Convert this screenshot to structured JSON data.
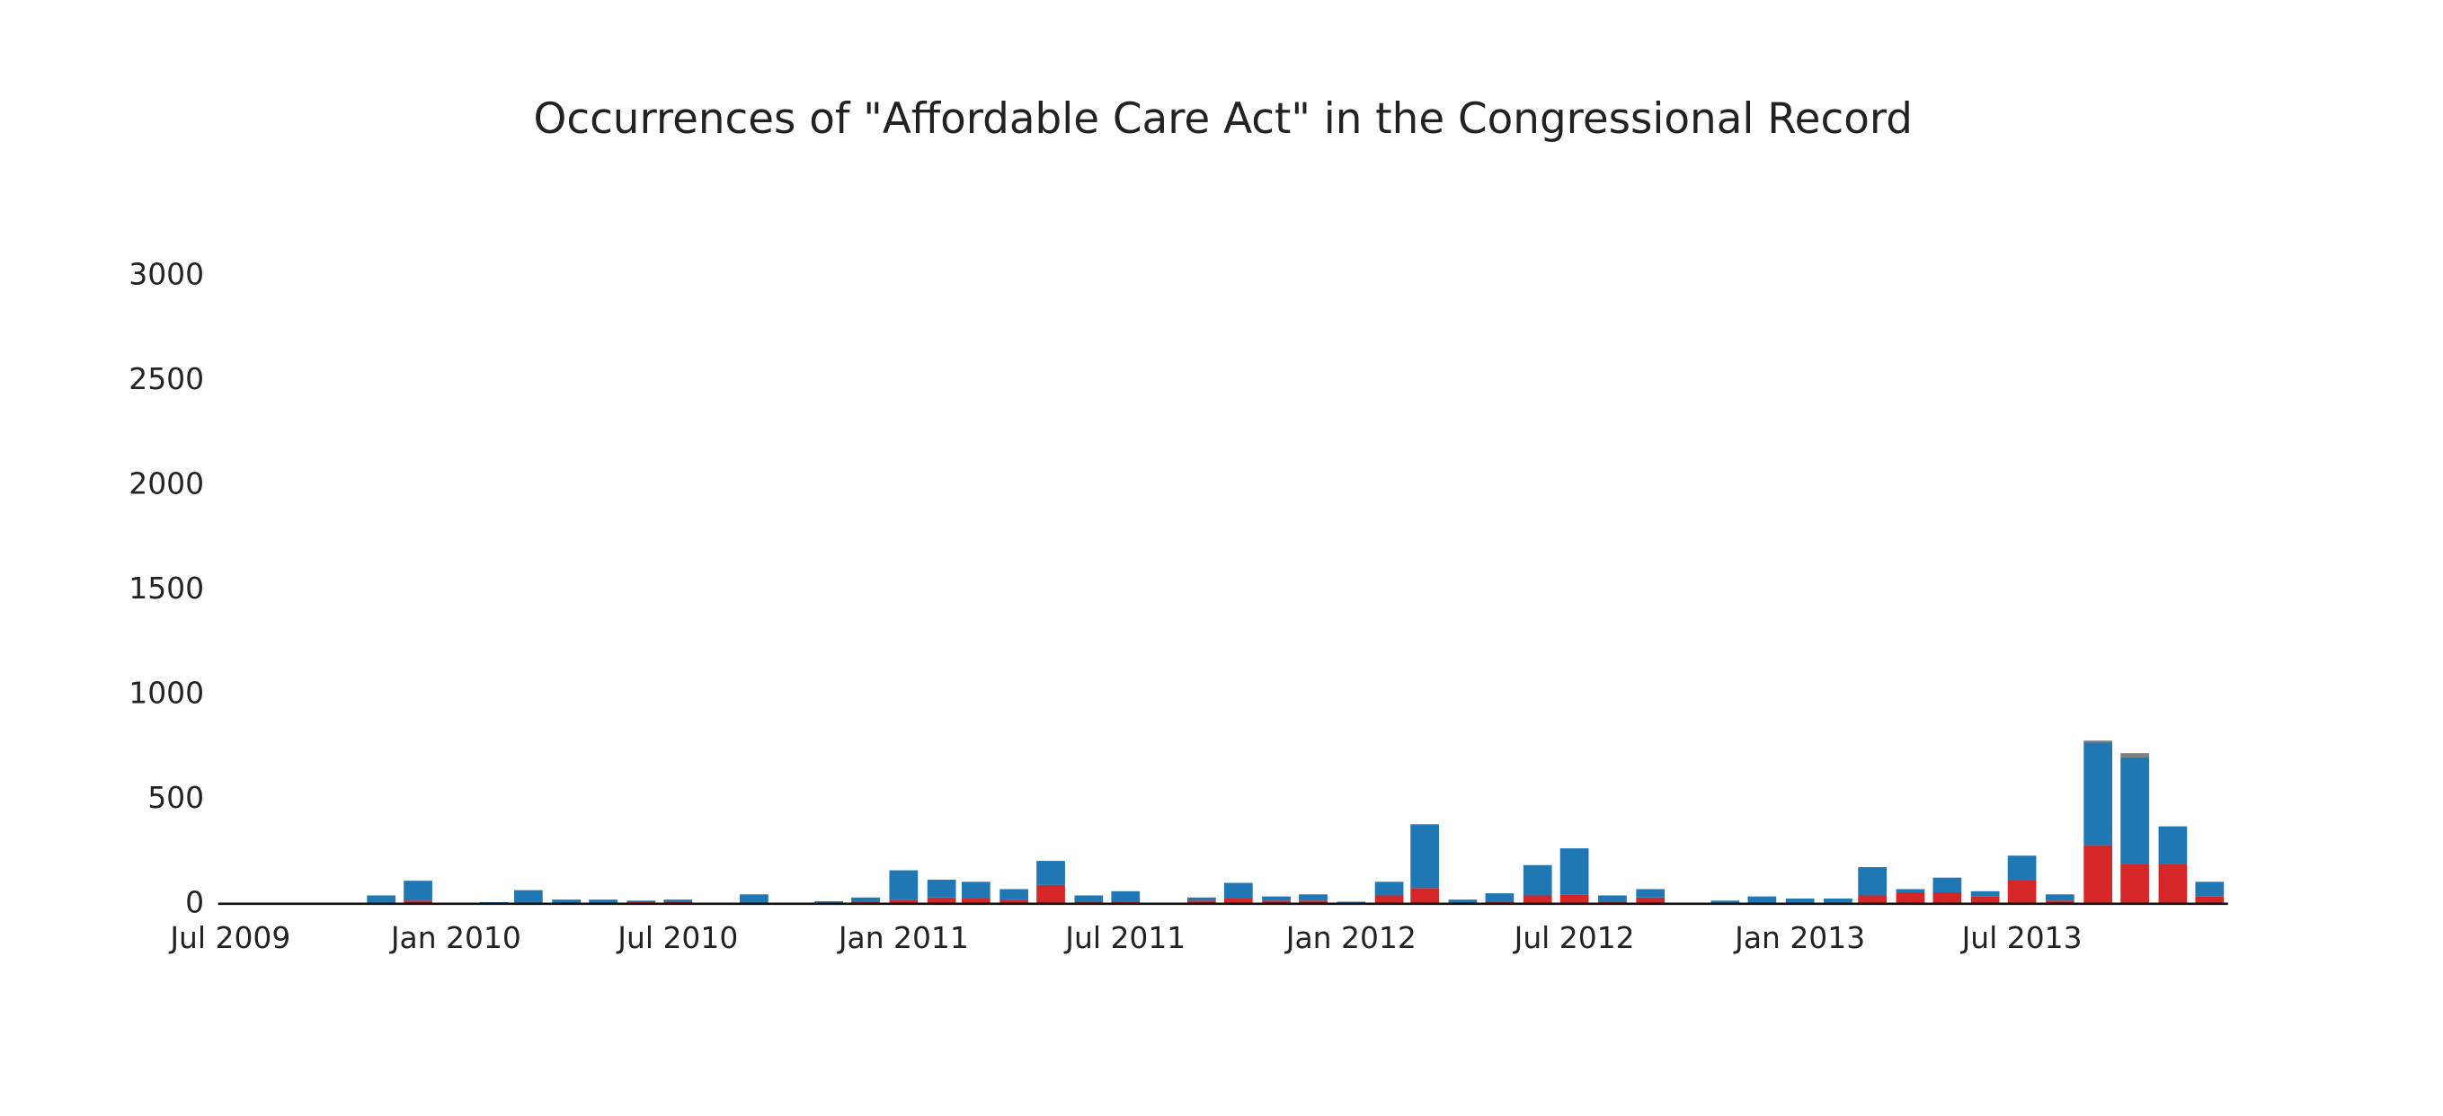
{
  "chart_data": {
    "type": "bar",
    "stacked": true,
    "title": "Occurrences of \"Affordable Care Act\" in the Congressional Record",
    "x": [
      "2009-07",
      "2009-08",
      "2009-09",
      "2009-10",
      "2009-11",
      "2009-12",
      "2010-01",
      "2010-02",
      "2010-03",
      "2010-04",
      "2010-05",
      "2010-06",
      "2010-07",
      "2010-08",
      "2010-09",
      "2010-10",
      "2010-11",
      "2010-12",
      "2011-01",
      "2011-02",
      "2011-03",
      "2011-04",
      "2011-05",
      "2011-06",
      "2011-07",
      "2011-08",
      "2011-09",
      "2011-10",
      "2011-11",
      "2011-12",
      "2012-01",
      "2012-02",
      "2012-03",
      "2012-04",
      "2012-05",
      "2012-06",
      "2012-07",
      "2012-08",
      "2012-09",
      "2012-10",
      "2012-11",
      "2012-12",
      "2013-01",
      "2013-02",
      "2013-03",
      "2013-04",
      "2013-05",
      "2013-06",
      "2013-07",
      "2013-08",
      "2013-09",
      "2013-10",
      "2013-11",
      "2013-12"
    ],
    "series": [
      {
        "color": "#d62728",
        "values": [
          0,
          0,
          0,
          0,
          5,
          15,
          0,
          2,
          5,
          3,
          5,
          10,
          12,
          0,
          3,
          0,
          5,
          10,
          20,
          30,
          25,
          20,
          90,
          10,
          10,
          0,
          15,
          25,
          15,
          15,
          3,
          40,
          75,
          5,
          10,
          40,
          45,
          10,
          30,
          0,
          3,
          5,
          5,
          5,
          40,
          55,
          55,
          35,
          115,
          15,
          280,
          190,
          190,
          35
        ]
      },
      {
        "color": "#1f77b4",
        "values": [
          0,
          0,
          0,
          0,
          35,
          95,
          5,
          6,
          60,
          17,
          15,
          5,
          8,
          5,
          42,
          3,
          7,
          20,
          140,
          85,
          80,
          50,
          115,
          30,
          50,
          5,
          15,
          75,
          20,
          30,
          7,
          65,
          305,
          15,
          40,
          145,
          220,
          30,
          40,
          3,
          12,
          30,
          20,
          20,
          135,
          15,
          70,
          25,
          115,
          30,
          490,
          510,
          180,
          70
        ]
      },
      {
        "color": "#7f7f7f",
        "values": [
          0,
          0,
          0,
          0,
          0,
          0,
          0,
          0,
          0,
          0,
          0,
          0,
          0,
          0,
          0,
          0,
          0,
          0,
          0,
          0,
          0,
          0,
          0,
          0,
          0,
          0,
          0,
          0,
          0,
          0,
          0,
          0,
          0,
          0,
          0,
          0,
          0,
          0,
          0,
          0,
          0,
          0,
          0,
          0,
          0,
          0,
          0,
          0,
          0,
          0,
          10,
          20,
          0,
          0
        ]
      }
    ],
    "xlim": [
      "2009-06-21",
      "2013-12-16"
    ],
    "xticks": [
      {
        "value": "2009-07",
        "label": "Jul 2009"
      },
      {
        "value": "2010-01",
        "label": "Jan 2010"
      },
      {
        "value": "2010-07",
        "label": "Jul 2010"
      },
      {
        "value": "2011-01",
        "label": "Jan 2011"
      },
      {
        "value": "2011-07",
        "label": "Jul 2011"
      },
      {
        "value": "2012-01",
        "label": "Jan 2012"
      },
      {
        "value": "2012-07",
        "label": "Jul 2012"
      },
      {
        "value": "2013-01",
        "label": "Jan 2013"
      },
      {
        "value": "2013-07",
        "label": "Jul 2013"
      }
    ],
    "ylim": [
      0,
      3000
    ],
    "yticks": [
      0,
      500,
      1000,
      1500,
      2000,
      2500,
      3000
    ],
    "grid": false
  }
}
